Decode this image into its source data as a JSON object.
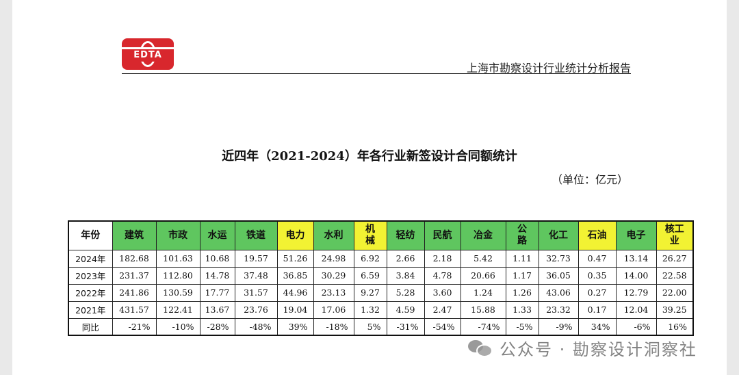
{
  "header": {
    "logo_text": "EDTA",
    "report_title": "上海市勘察设计行业统计分析报告"
  },
  "document": {
    "title": "近四年（2021-2024）年各行业新签设计合同额统计",
    "unit": "（单位：亿元）"
  },
  "table": {
    "header_label": "年份",
    "columns": [
      {
        "label": "建筑",
        "color": "#5fc65f"
      },
      {
        "label": "市政",
        "color": "#5fc65f"
      },
      {
        "label": "水运",
        "color": "#5fc65f"
      },
      {
        "label": "铁道",
        "color": "#5fc65f"
      },
      {
        "label": "电力",
        "color": "#f2f233"
      },
      {
        "label": "水利",
        "color": "#5fc65f"
      },
      {
        "label": "机械",
        "color": "#f2f233"
      },
      {
        "label": "轻纺",
        "color": "#5fc65f"
      },
      {
        "label": "民航",
        "color": "#5fc65f"
      },
      {
        "label": "冶金",
        "color": "#5fc65f"
      },
      {
        "label": "公路",
        "color": "#5fc65f"
      },
      {
        "label": "化工",
        "color": "#5fc65f"
      },
      {
        "label": "石油",
        "color": "#f2f233"
      },
      {
        "label": "电子",
        "color": "#5fc65f"
      },
      {
        "label": "核工业",
        "color": "#f2f233"
      }
    ],
    "rows": [
      {
        "label": "2024年",
        "values": [
          "182.68",
          "101.63",
          "10.68",
          "19.57",
          "51.26",
          "24.98",
          "6.92",
          "2.66",
          "2.18",
          "5.42",
          "1.11",
          "32.73",
          "0.47",
          "13.14",
          "26.27"
        ]
      },
      {
        "label": "2023年",
        "values": [
          "231.37",
          "112.80",
          "14.78",
          "37.48",
          "36.85",
          "30.29",
          "6.59",
          "3.84",
          "4.78",
          "20.66",
          "1.17",
          "36.05",
          "0.35",
          "14.00",
          "22.58"
        ]
      },
      {
        "label": "2022年",
        "values": [
          "241.86",
          "130.59",
          "17.77",
          "31.57",
          "44.96",
          "23.13",
          "9.27",
          "5.28",
          "3.60",
          "1.24",
          "1.26",
          "43.06",
          "0.27",
          "12.79",
          "22.00"
        ]
      },
      {
        "label": "2021年",
        "values": [
          "431.57",
          "122.41",
          "13.67",
          "23.76",
          "19.04",
          "17.06",
          "1.32",
          "4.59",
          "2.47",
          "15.88",
          "1.33",
          "23.32",
          "0.17",
          "12.04",
          "39.25"
        ]
      },
      {
        "label": "同比",
        "values": [
          "-21%",
          "-10%",
          "-28%",
          "-48%",
          "39%",
          "-18%",
          "5%",
          "-31%",
          "-54%",
          "-74%",
          "-5%",
          "-9%",
          "34%",
          "-6%",
          "16%"
        ]
      }
    ]
  },
  "watermark": {
    "text": "公众号 · 勘察设计洞察社",
    "icon": "wechat-icon"
  }
}
